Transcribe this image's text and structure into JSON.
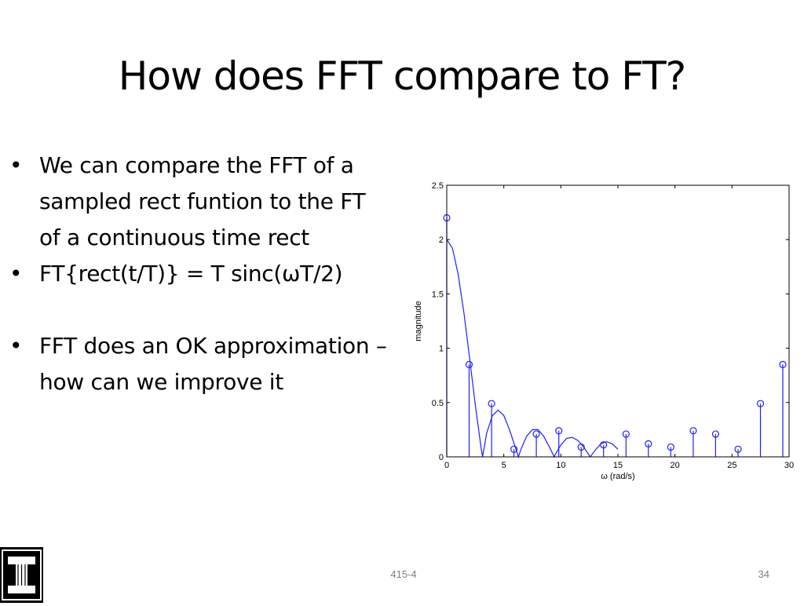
{
  "slide": {
    "title": "How does FFT compare to FT?",
    "bullets": [
      "We can compare the FFT of a sampled rect funtion to the FT of a continuous time rect",
      "FT{rect(t/T)} = T sinc(ωT/2)",
      "FFT does an OK approximation – how can we improve it"
    ],
    "bullet_symbol": "•",
    "footer_center": "415-4",
    "page_number": "34",
    "logo_icon": "illinois-block-i-icon"
  },
  "colors": {
    "plot_line": "#1f1fff",
    "text": "#000000",
    "footer": "#7f7f7f"
  },
  "chart_data": {
    "type": "line",
    "title": "",
    "xlabel": "ω (rad/s)",
    "ylabel": "magnitude",
    "xlim": [
      0,
      30
    ],
    "ylim": [
      0,
      2.5
    ],
    "xticks": [
      "0",
      "5",
      "10",
      "15",
      "20",
      "25",
      "30"
    ],
    "yticks": [
      "0",
      "0.5",
      "1",
      "1.5",
      "2",
      "2.5"
    ],
    "grid": false,
    "series": [
      {
        "kind": "line",
        "x": [
          0,
          0.5,
          1,
          1.5,
          2,
          2.5,
          3,
          3.14,
          3.5,
          4,
          4.5,
          5,
          5.5,
          6,
          6.28,
          6.5,
          7,
          7.5,
          8,
          8.5,
          9,
          9.42,
          9.5,
          10,
          10.5,
          11,
          11.5,
          12,
          12.57,
          13,
          13.5,
          14,
          14.5,
          15
        ],
        "y": [
          2.0,
          1.92,
          1.68,
          1.33,
          0.91,
          0.48,
          0.09,
          0.0,
          0.22,
          0.38,
          0.43,
          0.38,
          0.25,
          0.09,
          0.0,
          0.07,
          0.19,
          0.25,
          0.25,
          0.19,
          0.09,
          0.0,
          0.02,
          0.11,
          0.17,
          0.18,
          0.15,
          0.09,
          0.0,
          0.06,
          0.12,
          0.14,
          0.12,
          0.07
        ]
      },
      {
        "kind": "stem",
        "x": [
          0,
          1.96,
          3.93,
          5.89,
          7.85,
          9.82,
          11.78,
          13.74,
          15.71,
          17.67,
          19.63,
          21.6,
          23.56,
          25.53,
          27.49,
          29.45
        ],
        "y": [
          2.2,
          0.85,
          0.49,
          0.07,
          0.21,
          0.24,
          0.09,
          0.11,
          0.21,
          0.12,
          0.09,
          0.24,
          0.21,
          0.07,
          0.49,
          0.85
        ]
      }
    ]
  }
}
